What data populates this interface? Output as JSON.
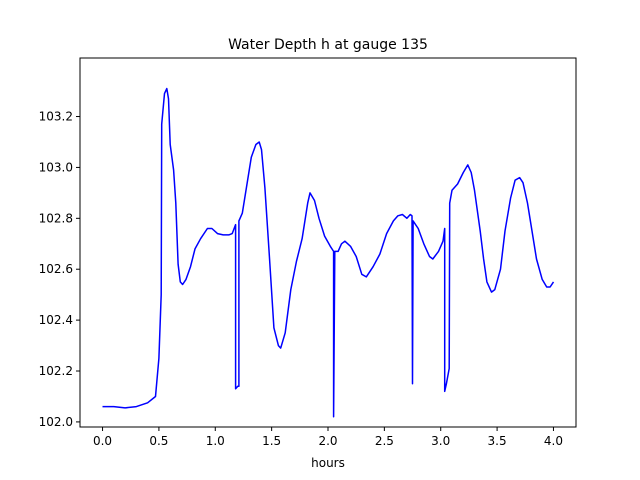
{
  "chart_data": {
    "type": "line",
    "title": "Water Depth h at gauge 135",
    "xlabel": "hours",
    "ylabel": "",
    "xlim": [
      -0.2,
      4.2
    ],
    "ylim": [
      101.98,
      103.43
    ],
    "grid": false,
    "x_ticks": [
      0.0,
      0.5,
      1.0,
      1.5,
      2.0,
      2.5,
      3.0,
      3.5,
      4.0
    ],
    "x_tick_labels": [
      "0.0",
      "0.5",
      "1.0",
      "1.5",
      "2.0",
      "2.5",
      "3.0",
      "3.5",
      "4.0"
    ],
    "y_ticks": [
      102.0,
      102.2,
      102.4,
      102.6,
      102.8,
      103.0,
      103.2
    ],
    "y_tick_labels": [
      "102.0",
      "102.2",
      "102.4",
      "102.6",
      "102.8",
      "103.0",
      "103.2"
    ],
    "series": [
      {
        "color": "#0000ff",
        "points": [
          [
            0.0,
            102.06
          ],
          [
            0.1,
            102.06
          ],
          [
            0.2,
            102.055
          ],
          [
            0.3,
            102.06
          ],
          [
            0.4,
            102.075
          ],
          [
            0.47,
            102.1
          ],
          [
            0.5,
            102.25
          ],
          [
            0.52,
            102.5
          ],
          [
            0.525,
            103.17
          ],
          [
            0.55,
            103.29
          ],
          [
            0.57,
            103.31
          ],
          [
            0.585,
            103.27
          ],
          [
            0.6,
            103.09
          ],
          [
            0.63,
            102.99
          ],
          [
            0.65,
            102.86
          ],
          [
            0.67,
            102.62
          ],
          [
            0.69,
            102.55
          ],
          [
            0.71,
            102.54
          ],
          [
            0.74,
            102.56
          ],
          [
            0.78,
            102.61
          ],
          [
            0.82,
            102.68
          ],
          [
            0.87,
            102.72
          ],
          [
            0.93,
            102.76
          ],
          [
            0.97,
            102.76
          ],
          [
            1.02,
            102.74
          ],
          [
            1.07,
            102.735
          ],
          [
            1.12,
            102.735
          ],
          [
            1.15,
            102.74
          ],
          [
            1.18,
            102.775
          ],
          [
            1.18,
            102.13
          ],
          [
            1.2,
            102.14
          ],
          [
            1.21,
            102.14
          ],
          [
            1.21,
            102.79
          ],
          [
            1.24,
            102.82
          ],
          [
            1.28,
            102.93
          ],
          [
            1.32,
            103.04
          ],
          [
            1.36,
            103.09
          ],
          [
            1.39,
            103.1
          ],
          [
            1.41,
            103.07
          ],
          [
            1.44,
            102.92
          ],
          [
            1.48,
            102.65
          ],
          [
            1.52,
            102.37
          ],
          [
            1.56,
            102.3
          ],
          [
            1.58,
            102.29
          ],
          [
            1.62,
            102.35
          ],
          [
            1.67,
            102.52
          ],
          [
            1.72,
            102.63
          ],
          [
            1.77,
            102.72
          ],
          [
            1.82,
            102.86
          ],
          [
            1.84,
            102.9
          ],
          [
            1.88,
            102.87
          ],
          [
            1.92,
            102.8
          ],
          [
            1.97,
            102.73
          ],
          [
            2.02,
            102.69
          ],
          [
            2.05,
            102.67
          ],
          [
            2.05,
            102.02
          ],
          [
            2.06,
            102.67
          ],
          [
            2.09,
            102.67
          ],
          [
            2.12,
            102.7
          ],
          [
            2.15,
            102.71
          ],
          [
            2.2,
            102.69
          ],
          [
            2.25,
            102.65
          ],
          [
            2.3,
            102.58
          ],
          [
            2.34,
            102.57
          ],
          [
            2.4,
            102.61
          ],
          [
            2.46,
            102.66
          ],
          [
            2.52,
            102.74
          ],
          [
            2.58,
            102.79
          ],
          [
            2.62,
            102.81
          ],
          [
            2.66,
            102.815
          ],
          [
            2.7,
            102.8
          ],
          [
            2.73,
            102.815
          ],
          [
            2.745,
            102.81
          ],
          [
            2.75,
            102.15
          ],
          [
            2.755,
            102.79
          ],
          [
            2.8,
            102.76
          ],
          [
            2.85,
            102.7
          ],
          [
            2.9,
            102.65
          ],
          [
            2.93,
            102.64
          ],
          [
            2.98,
            102.67
          ],
          [
            3.02,
            102.71
          ],
          [
            3.035,
            102.76
          ],
          [
            3.035,
            102.12
          ],
          [
            3.05,
            102.15
          ],
          [
            3.075,
            102.21
          ],
          [
            3.08,
            102.86
          ],
          [
            3.1,
            102.91
          ],
          [
            3.15,
            102.935
          ],
          [
            3.2,
            102.98
          ],
          [
            3.24,
            103.01
          ],
          [
            3.27,
            102.98
          ],
          [
            3.3,
            102.91
          ],
          [
            3.35,
            102.75
          ],
          [
            3.38,
            102.64
          ],
          [
            3.41,
            102.55
          ],
          [
            3.45,
            102.51
          ],
          [
            3.48,
            102.52
          ],
          [
            3.53,
            102.6
          ],
          [
            3.57,
            102.75
          ],
          [
            3.62,
            102.88
          ],
          [
            3.66,
            102.95
          ],
          [
            3.7,
            102.96
          ],
          [
            3.73,
            102.94
          ],
          [
            3.77,
            102.86
          ],
          [
            3.81,
            102.75
          ],
          [
            3.85,
            102.64
          ],
          [
            3.9,
            102.56
          ],
          [
            3.94,
            102.53
          ],
          [
            3.97,
            102.53
          ],
          [
            4.0,
            102.55
          ]
        ]
      }
    ]
  }
}
